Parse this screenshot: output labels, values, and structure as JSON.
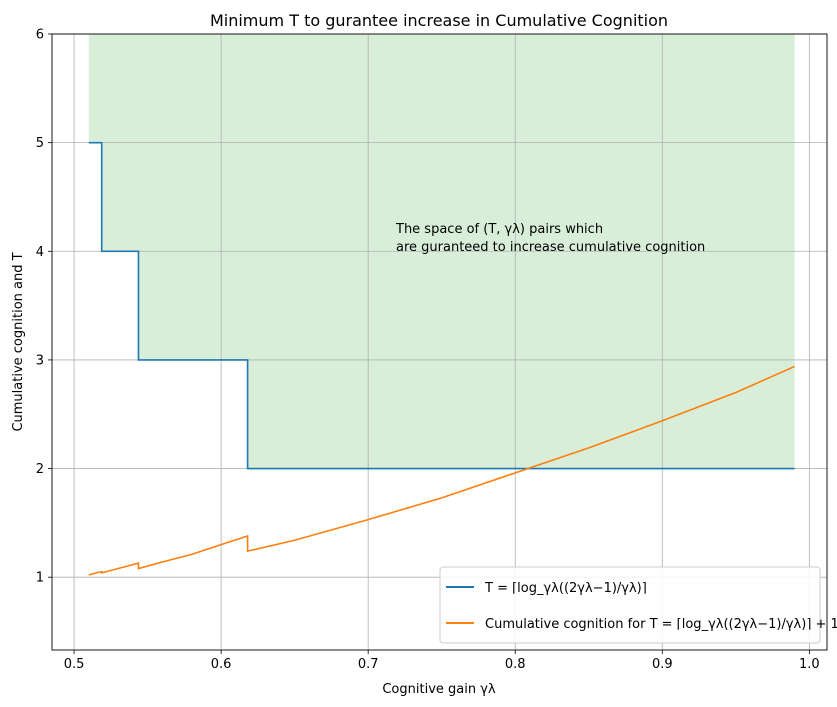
{
  "chart_data": {
    "type": "line",
    "title": "Minimum T to gurantee increase in Cumulative Cognition",
    "xlabel": "Cognitive gain γλ",
    "ylabel": "Cumulative cognition and T",
    "xlim": [
      0.485,
      1.012
    ],
    "ylim": [
      0.33,
      6.0
    ],
    "x_ticks": [
      {
        "value": 0.5,
        "label": "0.5"
      },
      {
        "value": 0.6,
        "label": "0.6"
      },
      {
        "value": 0.7,
        "label": "0.7"
      },
      {
        "value": 0.8,
        "label": "0.8"
      },
      {
        "value": 0.9,
        "label": "0.9"
      },
      {
        "value": 1.0,
        "label": "1.0"
      }
    ],
    "y_ticks": [
      {
        "value": 1,
        "label": "1"
      },
      {
        "value": 2,
        "label": "2"
      },
      {
        "value": 3,
        "label": "3"
      },
      {
        "value": 4,
        "label": "4"
      },
      {
        "value": 5,
        "label": "5"
      },
      {
        "value": 6,
        "label": "6"
      }
    ],
    "grid": true,
    "legend_position": "lower-right",
    "series": [
      {
        "name": "T = ⌈log_γλ((2γλ−1)/γλ)⌉",
        "color": "#1f77b4",
        "x": [
          0.51,
          0.5188,
          0.5188,
          0.5438,
          0.5438,
          0.618,
          0.618,
          0.99
        ],
        "y": [
          5,
          5,
          4,
          4,
          3,
          3,
          2,
          2
        ]
      },
      {
        "name": "Cumulative cognition for T = ⌈log_γλ((2γλ−1)/γλ)⌉ + 1",
        "color": "#ff7f0e",
        "x": [
          0.51,
          0.518,
          0.5188,
          0.5188,
          0.53,
          0.5438,
          0.5438,
          0.56,
          0.58,
          0.6,
          0.618,
          0.618,
          0.65,
          0.7,
          0.75,
          0.8,
          0.85,
          0.9,
          0.95,
          0.99
        ],
        "y": [
          1.02,
          1.05,
          1.05,
          1.04,
          1.08,
          1.13,
          1.08,
          1.14,
          1.21,
          1.3,
          1.38,
          1.24,
          1.34,
          1.53,
          1.73,
          1.96,
          2.19,
          2.44,
          2.7,
          2.94
        ]
      }
    ],
    "region": {
      "color": "#2ca02c",
      "opacity": 0.18,
      "x_from": 0.51,
      "x_to": 0.99,
      "y_top": 6.0
    },
    "annotation": {
      "lines": [
        "The space of (T, γλ) pairs which",
        "are guranteed to increase cumulative cognition"
      ],
      "x": 0.72,
      "y": 4.12
    }
  }
}
